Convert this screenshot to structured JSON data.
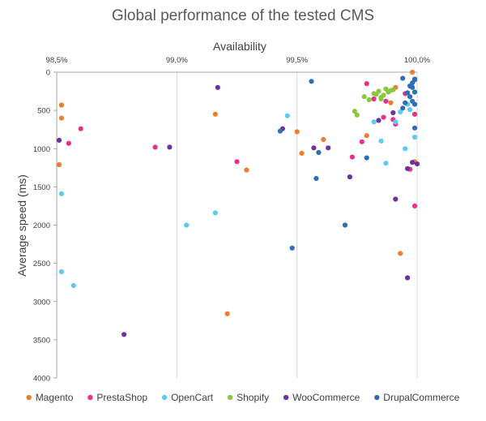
{
  "chart_data": {
    "type": "scatter",
    "title": "Global performance of the tested CMS",
    "xlabel": "Availability",
    "ylabel": "Average speed (ms)",
    "xlim": [
      98.5,
      100.0
    ],
    "ylim": [
      0,
      4000
    ],
    "y_reversed": true,
    "x_axis_position": "top",
    "x_ticks": [
      98.5,
      99.0,
      99.5,
      100.0
    ],
    "x_tick_labels": [
      "98,5%",
      "99,0%",
      "99,5%",
      "100,0%"
    ],
    "y_ticks": [
      0,
      500,
      1000,
      1500,
      2000,
      2500,
      3000,
      3500,
      4000
    ],
    "y_tick_labels": [
      "0",
      "500",
      "1000",
      "1500",
      "2000",
      "2500",
      "3000",
      "3500",
      "4000"
    ],
    "grid": "vertical",
    "legend_position": "bottom",
    "series": [
      {
        "name": "Magento",
        "color": "#ED7D31",
        "points": [
          [
            98.52,
            430
          ],
          [
            98.52,
            600
          ],
          [
            98.51,
            1210
          ],
          [
            99.16,
            550
          ],
          [
            99.5,
            780
          ],
          [
            99.52,
            1060
          ],
          [
            99.61,
            880
          ],
          [
            99.79,
            830
          ],
          [
            99.91,
            200
          ],
          [
            99.93,
            2370
          ],
          [
            99.98,
            0
          ],
          [
            99.99,
            1170
          ],
          [
            99.89,
            400
          ],
          [
            99.21,
            3160
          ],
          [
            99.29,
            1280
          ]
        ]
      },
      {
        "name": "PrestaShop",
        "color": "#E8308A",
        "points": [
          [
            98.6,
            740
          ],
          [
            98.55,
            930
          ],
          [
            98.91,
            980
          ],
          [
            99.25,
            1170
          ],
          [
            99.79,
            150
          ],
          [
            99.77,
            910
          ],
          [
            99.73,
            1110
          ],
          [
            99.82,
            350
          ],
          [
            99.86,
            590
          ],
          [
            99.91,
            680
          ],
          [
            99.95,
            280
          ],
          [
            99.97,
            1270
          ],
          [
            99.99,
            550
          ],
          [
            99.99,
            1750
          ],
          [
            99.9,
            620
          ],
          [
            99.87,
            380
          ]
        ]
      },
      {
        "name": "OpenCart",
        "color": "#5ECAF2",
        "points": [
          [
            98.52,
            1590
          ],
          [
            98.52,
            2610
          ],
          [
            98.57,
            2790
          ],
          [
            99.04,
            2000
          ],
          [
            99.16,
            1840
          ],
          [
            99.46,
            570
          ],
          [
            99.82,
            650
          ],
          [
            99.85,
            900
          ],
          [
            99.87,
            1190
          ],
          [
            99.93,
            520
          ],
          [
            99.95,
            1000
          ],
          [
            99.99,
            850
          ],
          [
            99.96,
            420
          ],
          [
            99.91,
            650
          ],
          [
            99.97,
            490
          ]
        ]
      },
      {
        "name": "Shopify",
        "color": "#8DC63F",
        "points": [
          [
            99.74,
            510
          ],
          [
            99.75,
            560
          ],
          [
            99.78,
            320
          ],
          [
            99.8,
            360
          ],
          [
            99.82,
            280
          ],
          [
            99.84,
            250
          ],
          [
            99.85,
            330
          ],
          [
            99.86,
            300
          ],
          [
            99.87,
            220
          ],
          [
            99.88,
            260
          ],
          [
            99.89,
            240
          ],
          [
            99.85,
            350
          ],
          [
            99.83,
            290
          ],
          [
            99.9,
            230
          ]
        ]
      },
      {
        "name": "WooCommerce",
        "color": "#7030A0",
        "points": [
          [
            98.51,
            890
          ],
          [
            98.78,
            3430
          ],
          [
            98.97,
            980
          ],
          [
            99.17,
            200
          ],
          [
            99.44,
            740
          ],
          [
            99.57,
            990
          ],
          [
            99.63,
            990
          ],
          [
            99.72,
            1370
          ],
          [
            99.84,
            630
          ],
          [
            99.9,
            530
          ],
          [
            99.91,
            1660
          ],
          [
            99.96,
            2690
          ],
          [
            99.96,
            1260
          ],
          [
            100.0,
            1200
          ],
          [
            99.98,
            1180
          ]
        ]
      },
      {
        "name": "DrupalCommerce",
        "color": "#2E6EB5",
        "points": [
          [
            99.56,
            120
          ],
          [
            99.43,
            770
          ],
          [
            99.48,
            2300
          ],
          [
            99.58,
            1390
          ],
          [
            99.59,
            1050
          ],
          [
            99.7,
            2000
          ],
          [
            99.79,
            1120
          ],
          [
            99.94,
            80
          ],
          [
            99.96,
            270
          ],
          [
            99.97,
            180
          ],
          [
            99.98,
            140
          ],
          [
            99.99,
            260
          ],
          [
            99.99,
            420
          ],
          [
            99.98,
            380
          ],
          [
            99.97,
            320
          ],
          [
            99.99,
            730
          ],
          [
            99.99,
            90
          ],
          [
            99.98,
            200
          ],
          [
            99.95,
            400
          ],
          [
            99.94,
            470
          ],
          [
            99.99,
            100
          ]
        ]
      }
    ]
  }
}
